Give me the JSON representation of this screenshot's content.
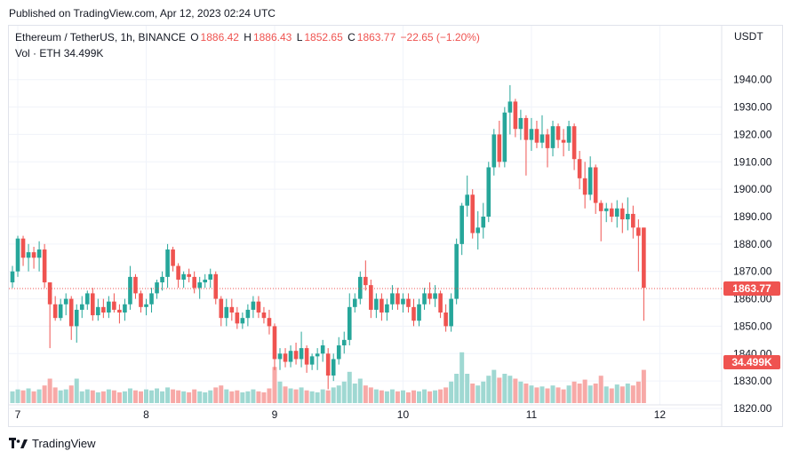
{
  "header": {
    "published": "Published on TradingView.com, Apr 12, 2023 02:24 UTC"
  },
  "legend": {
    "symbol": "Ethereum / TetherUS, 1h, BINANCE",
    "o_label": "O",
    "o_value": "1886.42",
    "h_label": "H",
    "h_value": "1886.43",
    "l_label": "L",
    "l_value": "1852.65",
    "c_label": "C",
    "c_value": "1863.77",
    "change": "−22.65 (−1.20%)",
    "vol_label": "Vol · ETH",
    "vol_value": "34.499K"
  },
  "footer": {
    "brand": "TradingView"
  },
  "colors": {
    "up": "#26a69a",
    "down": "#ef5350",
    "up_vol": "#9fd8d2",
    "down_vol": "#f7a9a7",
    "grid": "#f0f3fa"
  },
  "chart_data": {
    "type": "candlestick",
    "currency_label": "USDT",
    "y_ticks": [
      1820,
      1830,
      1840,
      1850,
      1860,
      1870,
      1880,
      1890,
      1900,
      1910,
      1920,
      1930,
      1940
    ],
    "y_tick_labels": [
      "1820.00",
      "1830.00",
      "1840.00",
      "1850.00",
      "1860.00",
      "1870.00",
      "1880.00",
      "1890.00",
      "1900.00",
      "1910.00",
      "1920.00",
      "1930.00",
      "1940.00"
    ],
    "ylim": [
      1810,
      1940
    ],
    "x_labels": [
      {
        "label": "7",
        "index": 1
      },
      {
        "label": "8",
        "index": 25
      },
      {
        "label": "9",
        "index": 49
      },
      {
        "label": "10",
        "index": 73
      },
      {
        "label": "11",
        "index": 97
      },
      {
        "label": "12",
        "index": 121
      }
    ],
    "last_price": 1863.77,
    "last_price_label": "1863.77",
    "last_volume_label": "34.499K",
    "vol_max": 52,
    "candles": [
      [
        1866,
        1872,
        1864,
        1870,
        12
      ],
      [
        1870,
        1883,
        1868,
        1882,
        14
      ],
      [
        1882,
        1883,
        1872,
        1875,
        13
      ],
      [
        1875,
        1880,
        1870,
        1877,
        15
      ],
      [
        1877,
        1879,
        1871,
        1875,
        12
      ],
      [
        1875,
        1881,
        1870,
        1878,
        14
      ],
      [
        1878,
        1880,
        1864,
        1866,
        18
      ],
      [
        1866,
        1866,
        1842,
        1858,
        25
      ],
      [
        1858,
        1861,
        1852,
        1853,
        16
      ],
      [
        1853,
        1860,
        1852,
        1858,
        13
      ],
      [
        1858,
        1862,
        1854,
        1860,
        14
      ],
      [
        1860,
        1861,
        1845,
        1850,
        18
      ],
      [
        1850,
        1858,
        1844,
        1856,
        25
      ],
      [
        1856,
        1861,
        1853,
        1858,
        12
      ],
      [
        1858,
        1863,
        1856,
        1862,
        14
      ],
      [
        1862,
        1864,
        1852,
        1854,
        13
      ],
      [
        1854,
        1860,
        1852,
        1857,
        11
      ],
      [
        1857,
        1860,
        1853,
        1855,
        12
      ],
      [
        1855,
        1861,
        1853,
        1859,
        14
      ],
      [
        1859,
        1862,
        1855,
        1856,
        13
      ],
      [
        1856,
        1858,
        1851,
        1855,
        11
      ],
      [
        1855,
        1860,
        1852,
        1858,
        12
      ],
      [
        1858,
        1872,
        1856,
        1868,
        15
      ],
      [
        1868,
        1869,
        1860,
        1862,
        13
      ],
      [
        1862,
        1863,
        1855,
        1857,
        12
      ],
      [
        1857,
        1860,
        1854,
        1858,
        14
      ],
      [
        1858,
        1864,
        1855,
        1862,
        13
      ],
      [
        1862,
        1867,
        1860,
        1866,
        15
      ],
      [
        1866,
        1870,
        1863,
        1868,
        12
      ],
      [
        1868,
        1880,
        1864,
        1878,
        16
      ],
      [
        1878,
        1879,
        1870,
        1872,
        14
      ],
      [
        1872,
        1873,
        1864,
        1867,
        13
      ],
      [
        1867,
        1870,
        1864,
        1869,
        12
      ],
      [
        1869,
        1871,
        1866,
        1868,
        11
      ],
      [
        1868,
        1870,
        1862,
        1864,
        14
      ],
      [
        1864,
        1868,
        1860,
        1866,
        12
      ],
      [
        1866,
        1869,
        1864,
        1867,
        11
      ],
      [
        1867,
        1871,
        1864,
        1869,
        13
      ],
      [
        1869,
        1870,
        1858,
        1860,
        16
      ],
      [
        1860,
        1861,
        1850,
        1853,
        18
      ],
      [
        1853,
        1860,
        1850,
        1857,
        14
      ],
      [
        1857,
        1860,
        1852,
        1855,
        12
      ],
      [
        1855,
        1857,
        1849,
        1851,
        13
      ],
      [
        1851,
        1855,
        1849,
        1853,
        11
      ],
      [
        1853,
        1858,
        1850,
        1856,
        12
      ],
      [
        1856,
        1861,
        1853,
        1859,
        14
      ],
      [
        1859,
        1861,
        1853,
        1855,
        12
      ],
      [
        1855,
        1857,
        1851,
        1853,
        11
      ],
      [
        1853,
        1856,
        1847,
        1850,
        15
      ],
      [
        1850,
        1851,
        1834,
        1838,
        37
      ],
      [
        1838,
        1842,
        1834,
        1840,
        22
      ],
      [
        1840,
        1842,
        1835,
        1837,
        17
      ],
      [
        1837,
        1843,
        1835,
        1841,
        15
      ],
      [
        1841,
        1844,
        1836,
        1838,
        14
      ],
      [
        1838,
        1848,
        1835,
        1842,
        16
      ],
      [
        1842,
        1843,
        1833,
        1836,
        13
      ],
      [
        1836,
        1840,
        1834,
        1839,
        12
      ],
      [
        1839,
        1842,
        1834,
        1840,
        11
      ],
      [
        1840,
        1845,
        1837,
        1843,
        14
      ],
      [
        1840,
        1842,
        1827,
        1832,
        13
      ],
      [
        1832,
        1840,
        1830,
        1838,
        16
      ],
      [
        1838,
        1846,
        1836,
        1843,
        18
      ],
      [
        1843,
        1848,
        1840,
        1845,
        22
      ],
      [
        1845,
        1862,
        1843,
        1857,
        32
      ],
      [
        1857,
        1862,
        1855,
        1860,
        20
      ],
      [
        1860,
        1870,
        1858,
        1868,
        25
      ],
      [
        1868,
        1874,
        1863,
        1865,
        18
      ],
      [
        1865,
        1867,
        1853,
        1856,
        16
      ],
      [
        1856,
        1862,
        1853,
        1860,
        14
      ],
      [
        1860,
        1862,
        1852,
        1855,
        13
      ],
      [
        1855,
        1860,
        1852,
        1858,
        12
      ],
      [
        1858,
        1865,
        1856,
        1862,
        14
      ],
      [
        1862,
        1864,
        1856,
        1858,
        12
      ],
      [
        1858,
        1862,
        1855,
        1860,
        13
      ],
      [
        1860,
        1862,
        1855,
        1857,
        11
      ],
      [
        1857,
        1860,
        1850,
        1852,
        13
      ],
      [
        1852,
        1860,
        1850,
        1858,
        12
      ],
      [
        1858,
        1864,
        1856,
        1862,
        14
      ],
      [
        1862,
        1866,
        1858,
        1860,
        12
      ],
      [
        1860,
        1865,
        1857,
        1862,
        13
      ],
      [
        1862,
        1863,
        1853,
        1855,
        14
      ],
      [
        1855,
        1858,
        1848,
        1850,
        16
      ],
      [
        1850,
        1862,
        1848,
        1860,
        22
      ],
      [
        1860,
        1882,
        1858,
        1880,
        30
      ],
      [
        1880,
        1895,
        1876,
        1894,
        52
      ],
      [
        1894,
        1905,
        1890,
        1898,
        30
      ],
      [
        1898,
        1900,
        1882,
        1884,
        20
      ],
      [
        1884,
        1892,
        1878,
        1886,
        18
      ],
      [
        1886,
        1895,
        1882,
        1890,
        22
      ],
      [
        1890,
        1910,
        1888,
        1908,
        28
      ],
      [
        1908,
        1922,
        1905,
        1920,
        34
      ],
      [
        1920,
        1925,
        1908,
        1910,
        26
      ],
      [
        1910,
        1930,
        1908,
        1928,
        30
      ],
      [
        1928,
        1938,
        1920,
        1932,
        28
      ],
      [
        1932,
        1933,
        1919,
        1922,
        25
      ],
      [
        1922,
        1929,
        1918,
        1926,
        22
      ],
      [
        1926,
        1927,
        1905,
        1918,
        20
      ],
      [
        1918,
        1926,
        1914,
        1922,
        18
      ],
      [
        1922,
        1925,
        1915,
        1917,
        16
      ],
      [
        1917,
        1927,
        1915,
        1920,
        17
      ],
      [
        1920,
        1922,
        1908,
        1915,
        15
      ],
      [
        1915,
        1925,
        1912,
        1923,
        18
      ],
      [
        1923,
        1924,
        1915,
        1918,
        16
      ],
      [
        1918,
        1922,
        1912,
        1917,
        14
      ],
      [
        1917,
        1925,
        1914,
        1923,
        18
      ],
      [
        1923,
        1924,
        1907,
        1911,
        22
      ],
      [
        1911,
        1914,
        1900,
        1904,
        20
      ],
      [
        1904,
        1910,
        1893,
        1898,
        24
      ],
      [
        1898,
        1912,
        1896,
        1908,
        18
      ],
      [
        1908,
        1909,
        1891,
        1895,
        20
      ],
      [
        1895,
        1896,
        1881,
        1892,
        28
      ],
      [
        1892,
        1895,
        1888,
        1893,
        17
      ],
      [
        1893,
        1895,
        1888,
        1890,
        15
      ],
      [
        1890,
        1896,
        1886,
        1893,
        19
      ],
      [
        1893,
        1895,
        1884,
        1889,
        17
      ],
      [
        1889,
        1897,
        1885,
        1891,
        20
      ],
      [
        1891,
        1894,
        1882,
        1886,
        18
      ],
      [
        1886,
        1889,
        1870,
        1883,
        22
      ],
      [
        1886,
        1886,
        1852,
        1864,
        34
      ]
    ]
  }
}
